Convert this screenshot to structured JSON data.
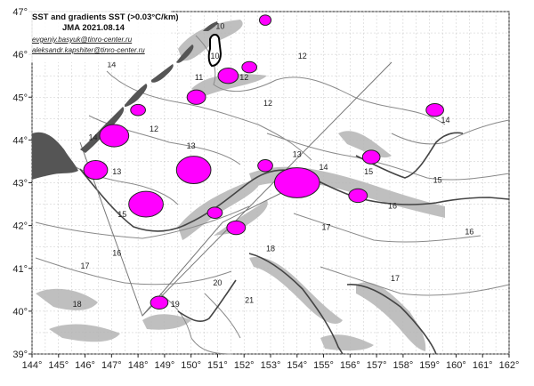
{
  "caption": {
    "title": "SST and gradients SST (>0.03°C/km)",
    "subtitle": "JMA 2021.08.14",
    "email1": "evgeniy.basyuk@tinro-center.ru",
    "email2": "aleksandr.kapshiter@tinro-center.ru"
  },
  "axes": {
    "x_ticks": [
      "144°",
      "145°",
      "146°",
      "147°",
      "148°",
      "149°",
      "150°",
      "151°",
      "152°",
      "153°",
      "154°",
      "155°",
      "156°",
      "157°",
      "158°",
      "159°",
      "160°",
      "161°",
      "162°"
    ],
    "y_ticks": [
      "47°",
      "46°",
      "45°",
      "44°",
      "43°",
      "42°",
      "41°",
      "40°",
      "39°"
    ],
    "lon_range": [
      144,
      162
    ],
    "lat_range": [
      39,
      47
    ]
  },
  "isotherm_labels": [
    {
      "text": "10",
      "lon": 151.1,
      "lat": 46.6
    },
    {
      "text": "10",
      "lon": 150.9,
      "lat": 45.9
    },
    {
      "text": "11",
      "lon": 150.3,
      "lat": 45.4
    },
    {
      "text": "12",
      "lon": 152.0,
      "lat": 45.4
    },
    {
      "text": "12",
      "lon": 154.2,
      "lat": 45.9
    },
    {
      "text": "12",
      "lon": 152.9,
      "lat": 44.8
    },
    {
      "text": "12",
      "lon": 148.6,
      "lat": 44.2
    },
    {
      "text": "13",
      "lon": 150.0,
      "lat": 43.8
    },
    {
      "text": "13",
      "lon": 147.2,
      "lat": 43.2
    },
    {
      "text": "13",
      "lon": 154.0,
      "lat": 43.6
    },
    {
      "text": "14",
      "lon": 147.0,
      "lat": 45.7
    },
    {
      "text": "14",
      "lon": 146.3,
      "lat": 44.0
    },
    {
      "text": "14",
      "lon": 155.0,
      "lat": 43.3
    },
    {
      "text": "14",
      "lon": 159.6,
      "lat": 44.4
    },
    {
      "text": "15",
      "lon": 147.4,
      "lat": 42.2
    },
    {
      "text": "15",
      "lon": 156.7,
      "lat": 43.2
    },
    {
      "text": "15",
      "lon": 159.3,
      "lat": 43.0
    },
    {
      "text": "16",
      "lon": 147.2,
      "lat": 41.3
    },
    {
      "text": "16",
      "lon": 157.6,
      "lat": 42.4
    },
    {
      "text": "16",
      "lon": 160.5,
      "lat": 41.8
    },
    {
      "text": "17",
      "lon": 146.0,
      "lat": 41.0
    },
    {
      "text": "17",
      "lon": 155.1,
      "lat": 41.9
    },
    {
      "text": "17",
      "lon": 157.7,
      "lat": 40.7
    },
    {
      "text": "18",
      "lon": 145.7,
      "lat": 40.1
    },
    {
      "text": "18",
      "lon": 153.0,
      "lat": 41.4
    },
    {
      "text": "19",
      "lon": 149.4,
      "lat": 40.1
    },
    {
      "text": "20",
      "lon": 151.0,
      "lat": 40.6
    },
    {
      "text": "21",
      "lon": 152.2,
      "lat": 40.2
    }
  ],
  "eddies": [
    {
      "lon": 152.8,
      "lat": 46.8,
      "rx": 0.22,
      "ry": 0.12
    },
    {
      "lon": 151.4,
      "lat": 45.5,
      "rx": 0.38,
      "ry": 0.18
    },
    {
      "lon": 152.2,
      "lat": 45.7,
      "rx": 0.28,
      "ry": 0.13
    },
    {
      "lon": 150.2,
      "lat": 45.0,
      "rx": 0.35,
      "ry": 0.17
    },
    {
      "lon": 148.0,
      "lat": 44.7,
      "rx": 0.28,
      "ry": 0.13
    },
    {
      "lon": 147.1,
      "lat": 44.1,
      "rx": 0.55,
      "ry": 0.26
    },
    {
      "lon": 146.4,
      "lat": 43.3,
      "rx": 0.45,
      "ry": 0.22
    },
    {
      "lon": 150.1,
      "lat": 43.3,
      "rx": 0.65,
      "ry": 0.32
    },
    {
      "lon": 152.8,
      "lat": 43.4,
      "rx": 0.28,
      "ry": 0.14
    },
    {
      "lon": 154.0,
      "lat": 43.0,
      "rx": 0.85,
      "ry": 0.35
    },
    {
      "lon": 156.3,
      "lat": 42.7,
      "rx": 0.35,
      "ry": 0.16
    },
    {
      "lon": 156.8,
      "lat": 43.6,
      "rx": 0.33,
      "ry": 0.16
    },
    {
      "lon": 159.2,
      "lat": 44.7,
      "rx": 0.33,
      "ry": 0.15
    },
    {
      "lon": 148.3,
      "lat": 42.5,
      "rx": 0.65,
      "ry": 0.3
    },
    {
      "lon": 150.9,
      "lat": 42.3,
      "rx": 0.28,
      "ry": 0.13
    },
    {
      "lon": 151.7,
      "lat": 41.95,
      "rx": 0.35,
      "ry": 0.16
    },
    {
      "lon": 148.8,
      "lat": 40.2,
      "rx": 0.33,
      "ry": 0.15
    }
  ],
  "colors": {
    "eddy_fill": "#ff00ff",
    "eddy_stroke": "#222222",
    "land": "#555555",
    "gradient": "#b5b5b5",
    "isotherm": "#8a8a8a",
    "front": "#444444"
  }
}
